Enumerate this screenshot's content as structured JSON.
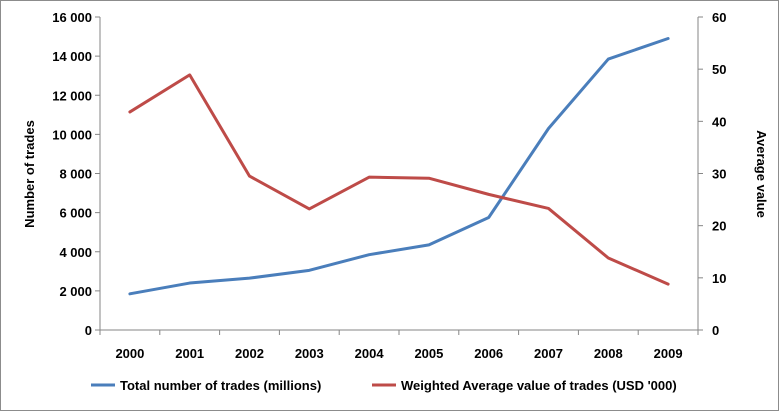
{
  "chart_data": {
    "type": "line",
    "title": "",
    "categories": [
      "2000",
      "2001",
      "2002",
      "2003",
      "2004",
      "2005",
      "2006",
      "2007",
      "2008",
      "2009"
    ],
    "ylabel_left": "Number of trades",
    "ylabel_right": "Average value",
    "ylim_left": [
      0,
      16000
    ],
    "ylim_right": [
      0,
      60
    ],
    "yticks_left": [
      "0",
      "2 000",
      "4 000",
      "6 000",
      "8 000",
      "10 000",
      "12 000",
      "14 000",
      "16 000"
    ],
    "yticks_right": [
      "0",
      "10",
      "20",
      "30",
      "40",
      "50",
      "60"
    ],
    "grid": false,
    "legend_position": "bottom",
    "series": [
      {
        "name": "Total number of trades (millions)",
        "axis": "left",
        "color": "#4a7ebb",
        "values": [
          1850,
          2400,
          2650,
          3050,
          3850,
          4350,
          5750,
          10300,
          13850,
          14900
        ]
      },
      {
        "name": "Weighted Average value of trades (USD '000)",
        "axis": "right",
        "color": "#be4b48",
        "values": [
          41.8,
          48.9,
          29.5,
          23.2,
          29.3,
          29.1,
          26.0,
          23.3,
          13.8,
          8.8
        ]
      }
    ]
  }
}
